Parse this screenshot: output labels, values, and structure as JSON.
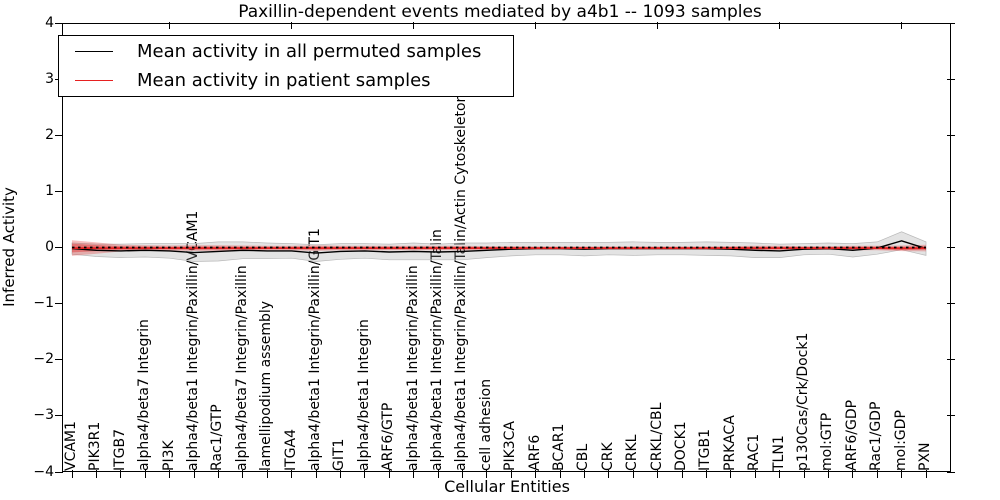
{
  "figure": {
    "title": "Paxillin-dependent events mediated by a4b1 -- 1093 samples",
    "xlabel": "Cellular Entities",
    "ylabel": "Inferred Activity"
  },
  "legend": {
    "items": [
      {
        "label": "Mean activity in all permuted samples",
        "color": "#000000"
      },
      {
        "label": "Mean activity in patient samples",
        "color": "#e62020"
      }
    ]
  },
  "chart_data": {
    "type": "line",
    "title": "Paxillin-dependent events mediated by a4b1 -- 1093 samples",
    "xlabel": "Cellular Entities",
    "ylabel": "Inferred Activity",
    "ylim": [
      -4,
      4
    ],
    "yticks": [
      -4,
      -3,
      -2,
      -1,
      0,
      1,
      2,
      3,
      4
    ],
    "grid": false,
    "legend_position": "upper left",
    "zero_line": true,
    "categories": [
      "VCAM1",
      "PIK3R1",
      "ITGB7",
      "alpha4/beta7 Integrin",
      "PI3K",
      "alpha4/beta1 Integrin/Paxillin/VCAM1",
      "Rac1/GTP",
      "alpha4/beta7 Integrin/Paxillin",
      "lamellipodium assembly",
      "ITGA4",
      "alpha4/beta1 Integrin/Paxillin/GIT1",
      "GIT1",
      "alpha4/beta1 Integrin",
      "ARF6/GTP",
      "alpha4/beta1 Integrin/Paxillin",
      "alpha4/beta1 Integrin/Paxillin/Talin",
      "alpha4/beta1 Integrin/Paxillin/Talin/Actin Cytoskeleton",
      "cell adhesion",
      "PIK3CA",
      "ARF6",
      "BCAR1",
      "CBL",
      "CRK",
      "CRKL",
      "CRKL/CBL",
      "DOCK1",
      "ITGB1",
      "PRKACA",
      "RAC1",
      "TLN1",
      "p130Cas/Crk/Dock1",
      "mol:GTP",
      "ARF6/GDP",
      "Rac1/GDP",
      "mol:GDP",
      "PXN"
    ],
    "series": [
      {
        "name": "Mean activity in all permuted samples",
        "color": "#000000",
        "band_color": "#999999",
        "values": [
          -0.02,
          -0.05,
          -0.06,
          -0.05,
          -0.06,
          -0.09,
          -0.07,
          -0.05,
          -0.06,
          -0.06,
          -0.1,
          -0.07,
          -0.06,
          -0.08,
          -0.07,
          -0.08,
          -0.07,
          -0.05,
          -0.03,
          -0.02,
          -0.02,
          -0.03,
          -0.02,
          -0.02,
          -0.02,
          -0.02,
          -0.02,
          -0.03,
          -0.05,
          -0.06,
          -0.03,
          -0.02,
          -0.05,
          -0.01,
          0.12,
          -0.02
        ],
        "band": [
          0.1,
          0.11,
          0.12,
          0.12,
          0.13,
          0.16,
          0.17,
          0.15,
          0.14,
          0.13,
          0.15,
          0.14,
          0.13,
          0.14,
          0.15,
          0.14,
          0.15,
          0.13,
          0.12,
          0.11,
          0.11,
          0.12,
          0.11,
          0.12,
          0.11,
          0.11,
          0.12,
          0.12,
          0.13,
          0.12,
          0.1,
          0.1,
          0.12,
          0.11,
          0.16,
          0.12
        ]
      },
      {
        "name": "Mean activity in patient samples",
        "color": "#e62020",
        "band_color": "#e03030",
        "values": [
          -0.01,
          -0.01,
          -0.01,
          -0.01,
          -0.01,
          -0.01,
          -0.01,
          -0.01,
          -0.01,
          -0.01,
          -0.01,
          -0.01,
          -0.01,
          -0.01,
          -0.01,
          -0.01,
          -0.01,
          -0.01,
          -0.01,
          -0.01,
          -0.01,
          -0.01,
          -0.01,
          -0.01,
          -0.01,
          -0.01,
          -0.01,
          -0.01,
          -0.01,
          -0.01,
          -0.01,
          -0.01,
          -0.01,
          -0.01,
          -0.015,
          -0.01
        ],
        "band": [
          0.14,
          0.1,
          0.06,
          0.05,
          0.045,
          0.05,
          0.05,
          0.045,
          0.04,
          0.04,
          0.05,
          0.04,
          0.04,
          0.04,
          0.04,
          0.04,
          0.04,
          0.035,
          0.035,
          0.03,
          0.03,
          0.03,
          0.03,
          0.03,
          0.03,
          0.03,
          0.03,
          0.035,
          0.04,
          0.04,
          0.035,
          0.035,
          0.04,
          0.04,
          0.05,
          0.06
        ]
      }
    ]
  }
}
